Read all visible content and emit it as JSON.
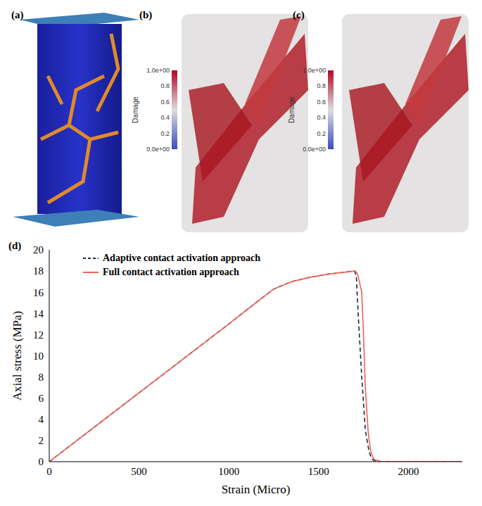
{
  "panels": {
    "a": {
      "label": "(a)"
    },
    "b": {
      "label": "(b)",
      "colorbar": {
        "title": "Damage",
        "range": [
          0,
          1
        ],
        "ticks": [
          {
            "value": 1,
            "label": "1.0e+00"
          },
          0.8,
          0.6,
          0.4,
          0.2,
          {
            "value": 0,
            "label": "0.0e+00"
          }
        ]
      }
    },
    "c": {
      "label": "(c)",
      "colorbar": {
        "title": "Damage",
        "range": [
          0,
          1
        ],
        "ticks": [
          {
            "value": 1,
            "label": "1.0e+00"
          },
          0.8,
          0.6,
          0.4,
          0.2,
          {
            "value": 0,
            "label": "0.0e+00"
          }
        ]
      }
    }
  },
  "chart_data": {
    "type": "line",
    "title": "(d)",
    "x_label": "Strain (Micro)",
    "y_label": "Axial stress (MPa)",
    "x": [
      0,
      500,
      1000,
      1150,
      1250,
      1350,
      1450,
      1550,
      1650,
      1700,
      1710,
      1720,
      1740,
      1750,
      1760,
      1775,
      1780,
      1790,
      1800,
      1810,
      1850,
      2300
    ],
    "series": [
      {
        "name": "Adaptive contact activation approach",
        "color": "#1b2a49",
        "line_style": "dashed",
        "values": [
          0,
          6.5,
          13,
          15,
          16.3,
          17.0,
          17.4,
          17.7,
          17.9,
          18.0,
          17.5,
          14,
          8,
          5.5,
          3,
          1.5,
          1,
          0.5,
          0.2,
          0.1,
          0,
          0
        ]
      },
      {
        "name": "Full contact activation approach",
        "color": "#f0625a",
        "line_style": "solid",
        "values": [
          0,
          6.5,
          13,
          15,
          16.3,
          17.0,
          17.4,
          17.7,
          17.9,
          18.0,
          17.9,
          17.5,
          16,
          12,
          7,
          3,
          2.2,
          1,
          0.5,
          0.2,
          0,
          0
        ]
      }
    ],
    "xlim": [
      0,
      2300
    ],
    "xticks": [
      0,
      500,
      1000,
      1500,
      2000
    ],
    "ylim": [
      0,
      20
    ],
    "yticks": [
      0,
      2,
      4,
      6,
      8,
      10,
      12,
      14,
      16,
      18,
      20
    ],
    "grid": false,
    "legend": "top-left"
  }
}
